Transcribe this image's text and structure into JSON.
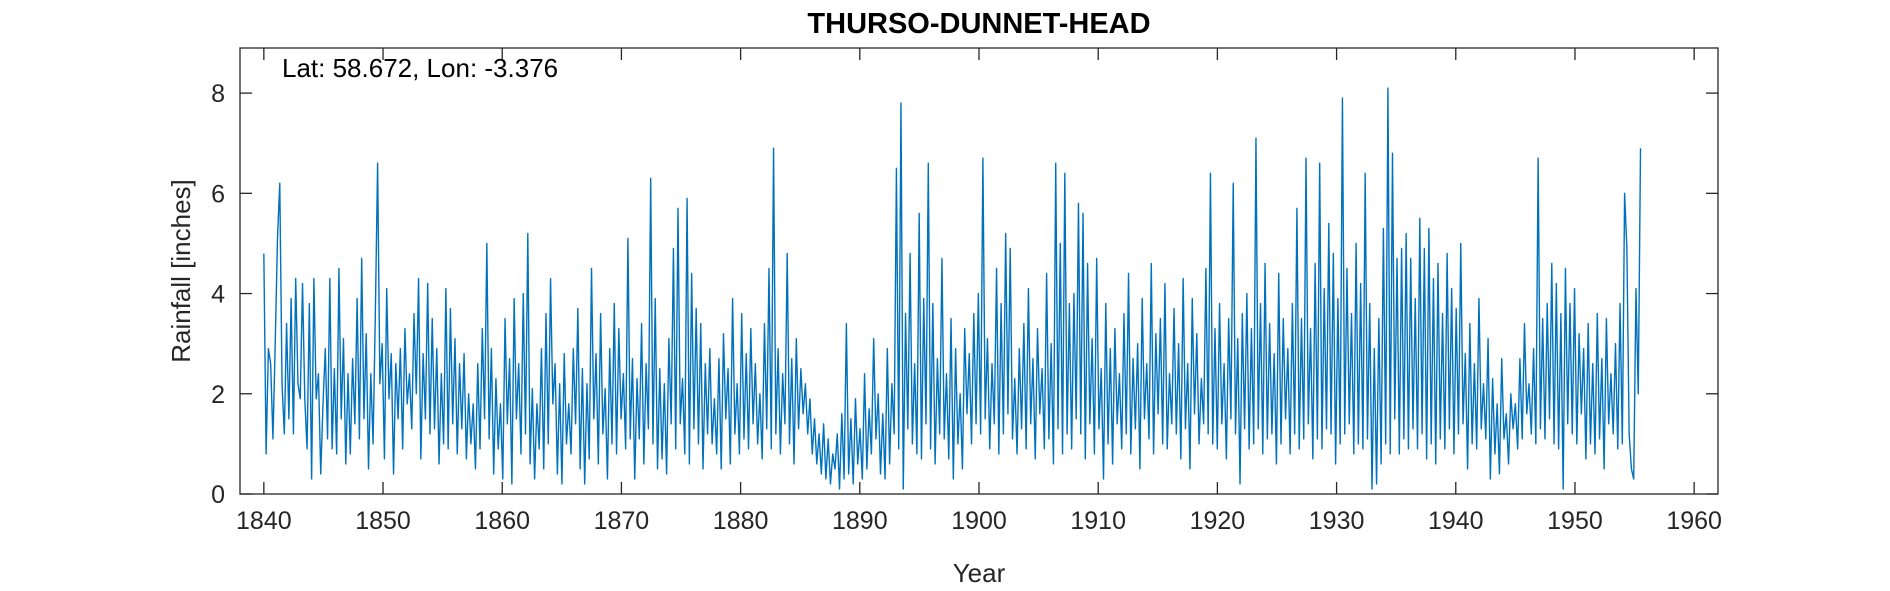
{
  "chart_data": {
    "type": "line",
    "title": "THURSO-DUNNET-HEAD",
    "annotation": "Lat: 58.672, Lon: -3.376",
    "xlabel": "Year",
    "ylabel": "Rainfall [inches]",
    "xlim": [
      1838,
      1962
    ],
    "ylim": [
      0,
      8.9
    ],
    "xticks": [
      1840,
      1850,
      1860,
      1870,
      1880,
      1890,
      1900,
      1910,
      1920,
      1930,
      1940,
      1950,
      1960
    ],
    "yticks": [
      0,
      2,
      4,
      6,
      8
    ],
    "grid": false,
    "line_color": "#0072BD",
    "series": [
      {
        "name": "",
        "frequency": "monthly",
        "x_start": 1840.0,
        "x_end": 1955.5,
        "values": [
          4.8,
          0.8,
          2.9,
          2.6,
          1.1,
          3.0,
          5.1,
          6.2,
          2.2,
          1.2,
          3.4,
          1.5,
          3.9,
          1.2,
          4.3,
          2.2,
          1.9,
          4.2,
          1.9,
          0.9,
          3.8,
          0.3,
          4.3,
          1.9,
          2.4,
          0.4,
          1.8,
          2.9,
          1.1,
          4.3,
          0.9,
          2.5,
          0.8,
          4.5,
          1.5,
          3.1,
          0.6,
          2.4,
          0.8,
          2.7,
          1.4,
          3.9,
          1.1,
          4.7,
          1.5,
          3.2,
          0.5,
          2.4,
          1.0,
          3.6,
          6.6,
          2.2,
          3.0,
          0.7,
          4.1,
          1.9,
          2.8,
          0.4,
          2.6,
          1.5,
          2.9,
          0.9,
          3.3,
          1.8,
          2.4,
          1.3,
          3.6,
          2.0,
          4.3,
          0.7,
          2.8,
          1.5,
          4.2,
          1.2,
          3.5,
          1.3,
          2.9,
          0.6,
          2.4,
          1.0,
          4.1,
          0.9,
          3.7,
          1.4,
          3.1,
          0.8,
          2.6,
          1.3,
          2.8,
          0.7,
          2.0,
          1.0,
          1.8,
          0.5,
          2.6,
          0.9,
          3.3,
          1.5,
          5.0,
          1.1,
          2.9,
          0.4,
          2.3,
          0.9,
          1.8,
          0.3,
          3.5,
          1.4,
          2.7,
          0.2,
          3.9,
          1.5,
          2.6,
          0.8,
          4.0,
          1.2,
          5.2,
          0.6,
          2.1,
          0.3,
          1.8,
          0.9,
          2.9,
          0.5,
          3.6,
          1.0,
          4.3,
          1.8,
          2.6,
          0.4,
          2.2,
          0.2,
          2.8,
          1.0,
          1.8,
          0.8,
          2.9,
          1.4,
          3.7,
          0.5,
          2.5,
          0.2,
          2.2,
          0.7,
          4.5,
          1.5,
          2.8,
          0.6,
          3.6,
          1.2,
          2.1,
          0.3,
          2.9,
          1.0,
          3.8,
          0.8,
          3.3,
          1.5,
          2.4,
          0.9,
          5.1,
          1.1,
          2.7,
          0.3,
          2.3,
          1.1,
          3.4,
          0.6,
          2.6,
          1.3,
          6.3,
          1.0,
          3.9,
          0.5,
          2.5,
          0.7,
          2.2,
          0.4,
          3.1,
          1.4,
          4.9,
          0.9,
          5.7,
          1.4,
          2.3,
          0.8,
          5.9,
          0.6,
          4.4,
          1.3,
          3.7,
          1.0,
          3.4,
          0.5,
          2.6,
          1.2,
          2.9,
          1.0,
          1.9,
          0.8,
          2.7,
          0.5,
          3.2,
          1.5,
          2.5,
          0.6,
          3.9,
          1.2,
          2.2,
          0.8,
          3.6,
          1.1,
          2.8,
          0.9,
          3.3,
          1.4,
          2.6,
          1.0,
          2.0,
          0.7,
          3.4,
          1.3,
          4.5,
          0.9,
          6.9,
          1.2,
          2.9,
          0.8,
          2.4,
          1.4,
          4.8,
          1.0,
          2.7,
          0.6,
          3.1,
          1.3,
          2.5,
          1.6,
          2.2,
          1.2,
          1.9,
          0.8,
          1.5,
          0.6,
          1.2,
          0.4,
          1.4,
          0.3,
          1.1,
          0.2,
          0.8,
          0.5,
          1.2,
          0.1,
          1.6,
          0.3,
          3.4,
          0.4,
          1.5,
          0.2,
          1.9,
          0.6,
          1.3,
          0.3,
          2.4,
          0.5,
          1.7,
          0.8,
          3.1,
          1.1,
          2.0,
          0.4,
          1.6,
          0.3,
          2.9,
          0.6,
          2.2,
          1.2,
          6.5,
          0.9,
          7.8,
          0.1,
          3.6,
          1.3,
          4.8,
          1.0,
          2.6,
          0.8,
          5.6,
          0.7,
          3.9,
          1.4,
          6.6,
          0.9,
          3.8,
          0.6,
          2.7,
          1.2,
          4.7,
          1.1,
          2.4,
          0.7,
          3.5,
          0.3,
          2.9,
          1.0,
          2.0,
          0.5,
          3.3,
          1.6,
          2.8,
          1.0,
          3.6,
          1.4,
          4.0,
          1.2,
          6.7,
          1.5,
          3.1,
          0.9,
          2.6,
          1.4,
          4.5,
          0.8,
          3.8,
          1.2,
          5.2,
          1.6,
          4.9,
          1.1,
          2.3,
          0.8,
          2.9,
          1.3,
          3.4,
          0.9,
          4.1,
          1.4,
          2.7,
          0.7,
          3.3,
          1.6,
          2.5,
          0.9,
          4.4,
          1.1,
          3.0,
          0.6,
          6.6,
          1.3,
          5.0,
          0.8,
          6.4,
          1.2,
          3.8,
          0.9,
          4.0,
          1.5,
          5.8,
          1.2,
          5.6,
          0.7,
          4.6,
          1.4,
          3.1,
          0.8,
          4.7,
          1.3,
          2.5,
          0.3,
          3.8,
          1.0,
          2.9,
          0.6,
          3.3,
          1.4,
          2.4,
          0.9,
          3.6,
          1.2,
          4.4,
          0.8,
          2.7,
          1.3,
          3.0,
          0.5,
          3.9,
          1.5,
          2.6,
          1.1,
          4.6,
          0.8,
          3.2,
          1.6,
          3.5,
          1.0,
          4.2,
          0.9,
          2.4,
          1.4,
          3.7,
          1.2,
          3.0,
          0.7,
          4.3,
          1.3,
          2.6,
          0.5,
          3.9,
          1.6,
          3.2,
          1.0,
          2.3,
          1.4,
          4.5,
          1.2,
          6.4,
          1.0,
          3.3,
          0.9,
          3.8,
          1.4,
          2.6,
          0.7,
          3.5,
          1.5,
          6.2,
          1.2,
          3.1,
          0.2,
          3.6,
          1.3,
          4.0,
          0.9,
          3.3,
          1.0,
          7.1,
          1.3,
          3.8,
          0.8,
          4.6,
          1.1,
          3.4,
          1.2,
          2.8,
          0.6,
          4.4,
          1.0,
          3.5,
          1.5,
          2.9,
          0.8,
          3.8,
          1.2,
          5.7,
          0.9,
          3.5,
          1.1,
          6.7,
          1.4,
          3.3,
          0.7,
          4.6,
          1.1,
          6.6,
          0.9,
          4.1,
          1.3,
          5.4,
          1.2,
          4.8,
          0.6,
          3.9,
          1.0,
          7.9,
          1.2,
          4.5,
          1.4,
          3.6,
          0.8,
          5.0,
          1.0,
          4.2,
          0.9,
          6.4,
          1.1,
          3.8,
          0.1,
          2.9,
          0.2,
          3.5,
          0.6,
          5.3,
          1.0,
          8.1,
          0.8,
          6.8,
          1.5,
          4.7,
          0.8,
          4.9,
          1.1,
          5.2,
          0.9,
          4.7,
          1.3,
          3.9,
          0.9,
          5.5,
          1.2,
          4.9,
          0.7,
          5.3,
          1.0,
          4.3,
          0.6,
          4.6,
          1.1,
          3.6,
          0.9,
          4.8,
          1.3,
          4.1,
          0.8,
          3.7,
          1.2,
          5.0,
          1.4,
          2.8,
          0.5,
          3.4,
          1.0,
          2.6,
          0.9,
          3.9,
          1.3,
          2.2,
          1.1,
          3.1,
          0.3,
          2.3,
          0.8,
          1.8,
          0.4,
          2.7,
          1.1,
          1.6,
          0.6,
          2.0,
          1.3,
          1.8,
          0.9,
          2.7,
          1.1,
          3.4,
          1.6,
          2.2,
          1.2,
          2.9,
          1.0,
          6.7,
          1.3,
          3.5,
          1.1,
          3.8,
          1.5,
          4.6,
          1.0,
          4.2,
          0.9,
          3.6,
          0.1,
          4.5,
          1.4,
          3.8,
          1.2,
          4.1,
          1.0,
          3.2,
          1.6,
          2.9,
          0.7,
          3.4,
          1.0,
          2.6,
          0.8,
          3.6,
          1.1,
          2.7,
          0.5,
          3.5,
          1.4,
          2.4,
          1.2,
          3.0,
          0.9,
          3.8,
          1.0,
          6.0,
          4.9,
          1.2,
          0.5,
          0.3,
          4.1,
          2.0,
          6.9
        ]
      }
    ]
  }
}
